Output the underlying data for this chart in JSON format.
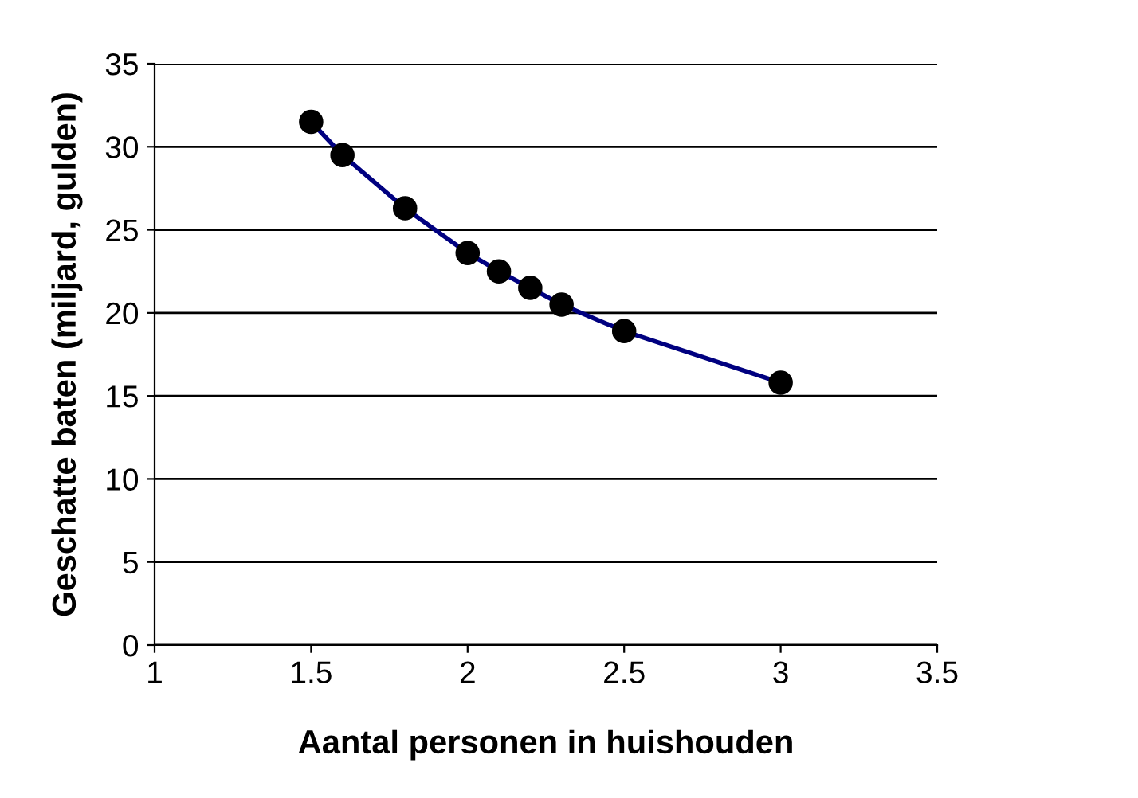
{
  "chart_data": {
    "type": "line",
    "xlabel": "Aantal personen in huishouden",
    "ylabel": "Geschatte baten (miljard, gulden)",
    "x": [
      1.5,
      1.6,
      1.8,
      2.0,
      2.1,
      2.2,
      2.3,
      2.5,
      3.0
    ],
    "series": [
      {
        "color": "#000080",
        "values": [
          31.5,
          29.5,
          26.3,
          23.6,
          22.5,
          21.5,
          20.5,
          18.9,
          15.8
        ]
      }
    ],
    "marker": "circle",
    "line_style": "solid",
    "xlim": [
      1,
      3.5
    ],
    "xticks": [
      1,
      1.5,
      2,
      2.5,
      3,
      3.5
    ],
    "ylim": [
      0,
      35
    ],
    "yticks": [
      0,
      5,
      10,
      15,
      20,
      25,
      30,
      35
    ],
    "grid": "y"
  }
}
